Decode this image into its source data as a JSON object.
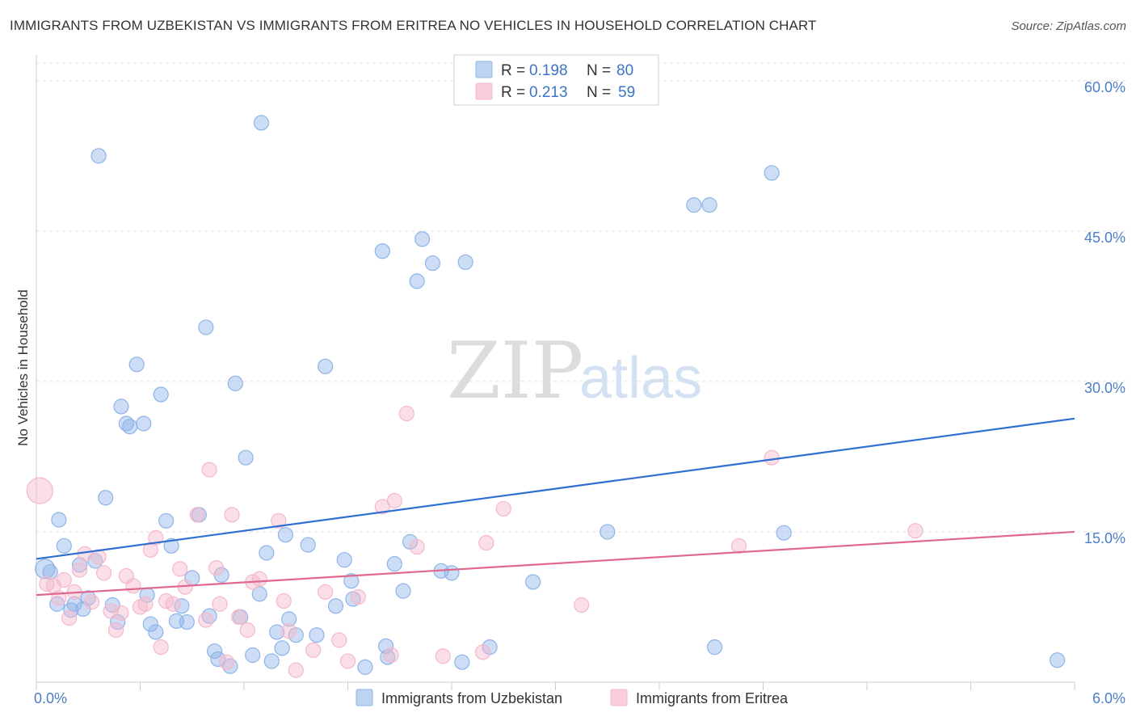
{
  "title": "IMMIGRANTS FROM UZBEKISTAN VS IMMIGRANTS FROM ERITREA NO VEHICLES IN HOUSEHOLD CORRELATION CHART",
  "source": "Source: ZipAtlas.com",
  "watermark": {
    "zip": "ZIP",
    "atlas": "atlas"
  },
  "chart_data": {
    "type": "scatter",
    "title": "IMMIGRANTS FROM UZBEKISTAN VS IMMIGRANTS FROM ERITREA NO VEHICLES IN HOUSEHOLD CORRELATION CHART",
    "xlabel": "",
    "ylabel": "No Vehicles in Household",
    "xlim": [
      0,
      6
    ],
    "ylim": [
      0,
      62
    ],
    "x_tick_labels": [
      "0.0%",
      "6.0%"
    ],
    "y_ticks": [
      15,
      30,
      45,
      60
    ],
    "y_tick_labels": [
      "15.0%",
      "30.0%",
      "45.0%",
      "60.0%"
    ],
    "grid": true,
    "legend_position": "top-center",
    "series": [
      {
        "name": "Immigrants from Uzbekistan",
        "color": "#8fb4e8",
        "line_color": "#2e6fd1",
        "r_label": "R =",
        "r_value": "0.198",
        "n_label": "N =",
        "n_value": "80",
        "trend": {
          "x": [
            0,
            6
          ],
          "y": [
            12.3,
            26.3
          ]
        },
        "points": [
          {
            "x": 0.05,
            "y": 11.3,
            "s": 2
          },
          {
            "x": 0.08,
            "y": 11.0,
            "s": 1
          },
          {
            "x": 0.12,
            "y": 7.8,
            "s": 1
          },
          {
            "x": 0.13,
            "y": 16.2,
            "s": 1
          },
          {
            "x": 0.16,
            "y": 13.6,
            "s": 1
          },
          {
            "x": 0.2,
            "y": 7.2,
            "s": 1
          },
          {
            "x": 0.22,
            "y": 7.8,
            "s": 1
          },
          {
            "x": 0.25,
            "y": 11.7,
            "s": 1
          },
          {
            "x": 0.27,
            "y": 7.3,
            "s": 1
          },
          {
            "x": 0.3,
            "y": 8.4,
            "s": 1
          },
          {
            "x": 0.34,
            "y": 12.1,
            "s": 1
          },
          {
            "x": 0.36,
            "y": 52.5,
            "s": 1
          },
          {
            "x": 0.4,
            "y": 18.4,
            "s": 1
          },
          {
            "x": 0.44,
            "y": 7.7,
            "s": 1
          },
          {
            "x": 0.47,
            "y": 6.0,
            "s": 1
          },
          {
            "x": 0.49,
            "y": 27.5,
            "s": 1
          },
          {
            "x": 0.52,
            "y": 25.8,
            "s": 1
          },
          {
            "x": 0.54,
            "y": 25.5,
            "s": 1
          },
          {
            "x": 0.58,
            "y": 31.7,
            "s": 1
          },
          {
            "x": 0.62,
            "y": 25.8,
            "s": 1
          },
          {
            "x": 0.64,
            "y": 8.7,
            "s": 1
          },
          {
            "x": 0.66,
            "y": 5.8,
            "s": 1
          },
          {
            "x": 0.69,
            "y": 5.0,
            "s": 1
          },
          {
            "x": 0.72,
            "y": 28.7,
            "s": 1
          },
          {
            "x": 0.75,
            "y": 16.1,
            "s": 1
          },
          {
            "x": 0.78,
            "y": 13.6,
            "s": 1
          },
          {
            "x": 0.81,
            "y": 6.1,
            "s": 1
          },
          {
            "x": 0.84,
            "y": 7.6,
            "s": 1
          },
          {
            "x": 0.87,
            "y": 6.0,
            "s": 1
          },
          {
            "x": 0.9,
            "y": 10.4,
            "s": 1
          },
          {
            "x": 0.94,
            "y": 16.7,
            "s": 1
          },
          {
            "x": 0.98,
            "y": 35.4,
            "s": 1
          },
          {
            "x": 1.0,
            "y": 6.6,
            "s": 1
          },
          {
            "x": 1.03,
            "y": 3.1,
            "s": 1
          },
          {
            "x": 1.05,
            "y": 2.3,
            "s": 1
          },
          {
            "x": 1.07,
            "y": 10.7,
            "s": 1
          },
          {
            "x": 1.12,
            "y": 1.6,
            "s": 1
          },
          {
            "x": 1.15,
            "y": 29.8,
            "s": 1
          },
          {
            "x": 1.18,
            "y": 6.5,
            "s": 1
          },
          {
            "x": 1.21,
            "y": 22.4,
            "s": 1
          },
          {
            "x": 1.25,
            "y": 2.7,
            "s": 1
          },
          {
            "x": 1.29,
            "y": 8.8,
            "s": 1
          },
          {
            "x": 1.3,
            "y": 55.8,
            "s": 1
          },
          {
            "x": 1.33,
            "y": 12.9,
            "s": 1
          },
          {
            "x": 1.36,
            "y": 2.1,
            "s": 1
          },
          {
            "x": 1.39,
            "y": 5.0,
            "s": 1
          },
          {
            "x": 1.42,
            "y": 3.4,
            "s": 1
          },
          {
            "x": 1.46,
            "y": 6.3,
            "s": 1
          },
          {
            "x": 1.44,
            "y": 14.7,
            "s": 1
          },
          {
            "x": 1.5,
            "y": 4.7,
            "s": 1
          },
          {
            "x": 1.57,
            "y": 13.7,
            "s": 1
          },
          {
            "x": 1.62,
            "y": 4.7,
            "s": 1
          },
          {
            "x": 1.67,
            "y": 31.5,
            "s": 1
          },
          {
            "x": 1.73,
            "y": 7.6,
            "s": 1
          },
          {
            "x": 1.78,
            "y": 12.2,
            "s": 1
          },
          {
            "x": 1.82,
            "y": 10.1,
            "s": 1
          },
          {
            "x": 1.83,
            "y": 8.3,
            "s": 1
          },
          {
            "x": 1.9,
            "y": 1.5,
            "s": 1
          },
          {
            "x": 2.0,
            "y": 43.0,
            "s": 1
          },
          {
            "x": 2.03,
            "y": 2.5,
            "s": 1
          },
          {
            "x": 2.07,
            "y": 11.8,
            "s": 1
          },
          {
            "x": 2.12,
            "y": 9.1,
            "s": 1
          },
          {
            "x": 2.16,
            "y": 14.0,
            "s": 1
          },
          {
            "x": 2.2,
            "y": 40.0,
            "s": 1
          },
          {
            "x": 2.23,
            "y": 44.2,
            "s": 1
          },
          {
            "x": 2.29,
            "y": 41.8,
            "s": 1
          },
          {
            "x": 2.34,
            "y": 11.1,
            "s": 1
          },
          {
            "x": 2.4,
            "y": 10.9,
            "s": 1
          },
          {
            "x": 2.46,
            "y": 2.0,
            "s": 1
          },
          {
            "x": 2.48,
            "y": 41.9,
            "s": 1
          },
          {
            "x": 2.62,
            "y": 3.5,
            "s": 1
          },
          {
            "x": 2.87,
            "y": 10.0,
            "s": 1
          },
          {
            "x": 3.3,
            "y": 15.0,
            "s": 1
          },
          {
            "x": 3.8,
            "y": 47.6,
            "s": 1
          },
          {
            "x": 3.89,
            "y": 47.6,
            "s": 1
          },
          {
            "x": 3.92,
            "y": 3.5,
            "s": 1
          },
          {
            "x": 4.25,
            "y": 50.8,
            "s": 1
          },
          {
            "x": 4.32,
            "y": 14.9,
            "s": 1
          },
          {
            "x": 5.9,
            "y": 2.2,
            "s": 1
          },
          {
            "x": 2.02,
            "y": 3.6,
            "s": 1
          }
        ]
      },
      {
        "name": "Immigrants from Eritrea",
        "color": "#f5b8cb",
        "line_color": "#e0688f",
        "r_label": "R =",
        "r_value": "0.213",
        "n_label": "N =",
        "n_value": "59",
        "trend": {
          "x": [
            0,
            6
          ],
          "y": [
            8.7,
            15.0
          ]
        },
        "points": [
          {
            "x": 0.02,
            "y": 19.1,
            "s": 3
          },
          {
            "x": 0.06,
            "y": 9.8,
            "s": 1
          },
          {
            "x": 0.1,
            "y": 9.6,
            "s": 1
          },
          {
            "x": 0.13,
            "y": 8.4,
            "s": 1
          },
          {
            "x": 0.16,
            "y": 10.2,
            "s": 1
          },
          {
            "x": 0.19,
            "y": 6.4,
            "s": 1
          },
          {
            "x": 0.22,
            "y": 9.0,
            "s": 1
          },
          {
            "x": 0.25,
            "y": 11.2,
            "s": 1
          },
          {
            "x": 0.28,
            "y": 12.8,
            "s": 1
          },
          {
            "x": 0.32,
            "y": 8.0,
            "s": 1
          },
          {
            "x": 0.36,
            "y": 12.5,
            "s": 1
          },
          {
            "x": 0.39,
            "y": 10.9,
            "s": 1
          },
          {
            "x": 0.43,
            "y": 7.1,
            "s": 1
          },
          {
            "x": 0.46,
            "y": 5.2,
            "s": 1
          },
          {
            "x": 0.49,
            "y": 6.9,
            "s": 1
          },
          {
            "x": 0.52,
            "y": 10.6,
            "s": 1
          },
          {
            "x": 0.56,
            "y": 9.6,
            "s": 1
          },
          {
            "x": 0.6,
            "y": 7.5,
            "s": 1
          },
          {
            "x": 0.63,
            "y": 7.8,
            "s": 1
          },
          {
            "x": 0.66,
            "y": 13.2,
            "s": 1
          },
          {
            "x": 0.69,
            "y": 14.4,
            "s": 1
          },
          {
            "x": 0.72,
            "y": 3.5,
            "s": 1
          },
          {
            "x": 0.75,
            "y": 8.1,
            "s": 1
          },
          {
            "x": 0.79,
            "y": 7.8,
            "s": 1
          },
          {
            "x": 0.83,
            "y": 11.3,
            "s": 1
          },
          {
            "x": 0.86,
            "y": 9.5,
            "s": 1
          },
          {
            "x": 0.93,
            "y": 16.7,
            "s": 1
          },
          {
            "x": 0.98,
            "y": 6.2,
            "s": 1
          },
          {
            "x": 1.0,
            "y": 21.2,
            "s": 1
          },
          {
            "x": 1.04,
            "y": 11.4,
            "s": 1
          },
          {
            "x": 1.06,
            "y": 7.8,
            "s": 1
          },
          {
            "x": 1.1,
            "y": 2.0,
            "s": 1
          },
          {
            "x": 1.13,
            "y": 16.7,
            "s": 1
          },
          {
            "x": 1.17,
            "y": 6.5,
            "s": 1
          },
          {
            "x": 1.22,
            "y": 5.2,
            "s": 1
          },
          {
            "x": 1.25,
            "y": 10.0,
            "s": 1
          },
          {
            "x": 1.29,
            "y": 10.3,
            "s": 1
          },
          {
            "x": 1.4,
            "y": 16.1,
            "s": 1
          },
          {
            "x": 1.43,
            "y": 8.1,
            "s": 1
          },
          {
            "x": 1.46,
            "y": 5.1,
            "s": 1
          },
          {
            "x": 1.5,
            "y": 1.2,
            "s": 1
          },
          {
            "x": 1.6,
            "y": 3.2,
            "s": 1
          },
          {
            "x": 1.67,
            "y": 9.0,
            "s": 1
          },
          {
            "x": 1.75,
            "y": 4.2,
            "s": 1
          },
          {
            "x": 1.8,
            "y": 2.1,
            "s": 1
          },
          {
            "x": 1.86,
            "y": 8.5,
            "s": 1
          },
          {
            "x": 2.0,
            "y": 17.5,
            "s": 1
          },
          {
            "x": 2.07,
            "y": 18.1,
            "s": 1
          },
          {
            "x": 2.05,
            "y": 2.7,
            "s": 1
          },
          {
            "x": 2.14,
            "y": 26.8,
            "s": 1
          },
          {
            "x": 2.2,
            "y": 13.5,
            "s": 1
          },
          {
            "x": 2.35,
            "y": 2.6,
            "s": 1
          },
          {
            "x": 2.58,
            "y": 3.0,
            "s": 1
          },
          {
            "x": 2.6,
            "y": 13.9,
            "s": 1
          },
          {
            "x": 2.7,
            "y": 17.3,
            "s": 1
          },
          {
            "x": 3.15,
            "y": 7.7,
            "s": 1
          },
          {
            "x": 4.06,
            "y": 13.6,
            "s": 1
          },
          {
            "x": 4.25,
            "y": 22.4,
            "s": 1
          },
          {
            "x": 5.08,
            "y": 15.1,
            "s": 1
          }
        ]
      }
    ]
  }
}
